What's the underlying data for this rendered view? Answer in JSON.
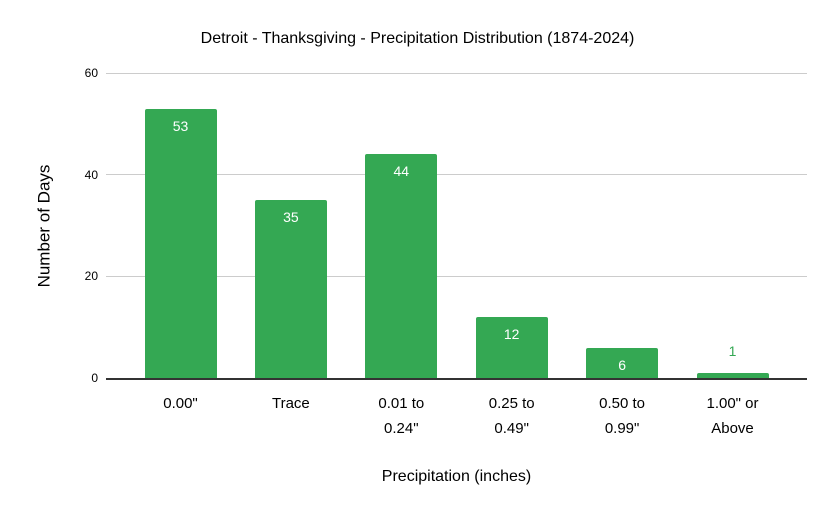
{
  "chart_data": {
    "type": "bar",
    "title": "Detroit - Thanksgiving - Precipitation Distribution (1874-2024)",
    "xlabel": "Precipitation (inches)",
    "ylabel": "Number of Days",
    "categories": [
      "0.00\"",
      "Trace",
      "0.01 to 0.24\"",
      "0.25 to 0.49\"",
      "0.50 to 0.99\"",
      "1.00\" or Above"
    ],
    "values": [
      53,
      35,
      44,
      12,
      6,
      1
    ],
    "yticks": [
      0,
      20,
      40,
      60
    ],
    "ylim": [
      0,
      60
    ],
    "grid": true,
    "legend_position": "none",
    "colors": {
      "bar": "#34a853",
      "value_label_inside": "#ffffff",
      "value_label_outside": "#34a853",
      "gridline": "#cccccc",
      "axis_line": "#333333",
      "text": "#000000"
    }
  }
}
